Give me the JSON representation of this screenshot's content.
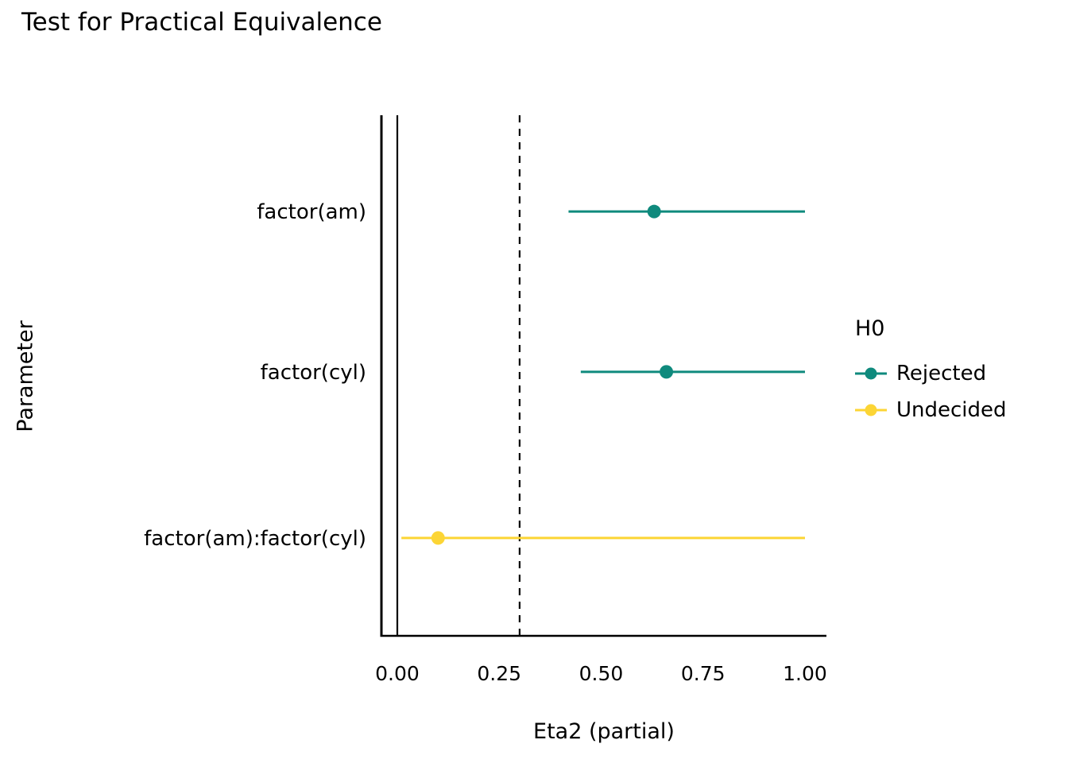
{
  "chart_data": {
    "type": "scatter",
    "subtype": "range-dot-equivalence-test",
    "title": "Test for Practical Equivalence",
    "xlabel": "Eta2 (partial)",
    "ylabel": "Parameter",
    "xlim": [
      0,
      1
    ],
    "x_ticks": [
      0,
      0.25,
      0.5,
      0.75,
      1
    ],
    "x_tick_labels": [
      "0.00",
      "0.25",
      "0.50",
      "0.75",
      "1.00"
    ],
    "zero_line": 0,
    "rope_threshold": 0.3,
    "grid": "off",
    "legend": {
      "title": "H0",
      "position": "right",
      "entries": [
        {
          "label": "Rejected",
          "color": "#0f8a7d"
        },
        {
          "label": "Undecided",
          "color": "#fcd535"
        }
      ]
    },
    "rows": [
      {
        "parameter": "factor(am)",
        "h0": "Rejected",
        "estimate": 0.63,
        "ci_low": 0.42,
        "ci_high": 1.0,
        "color": "#0f8a7d"
      },
      {
        "parameter": "factor(cyl)",
        "h0": "Rejected",
        "estimate": 0.66,
        "ci_low": 0.45,
        "ci_high": 1.0,
        "color": "#0f8a7d"
      },
      {
        "parameter": "factor(am):factor(cyl)",
        "h0": "Undecided",
        "estimate": 0.1,
        "ci_low": 0.01,
        "ci_high": 1.0,
        "color": "#fcd535"
      }
    ]
  }
}
